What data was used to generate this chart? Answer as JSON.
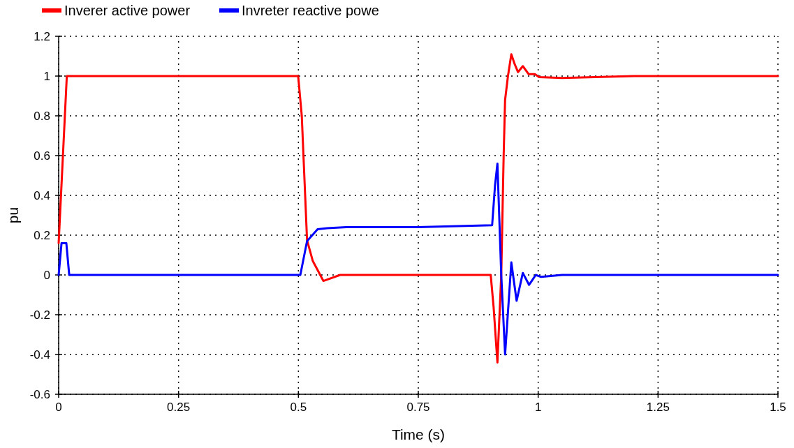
{
  "chart_data": {
    "type": "line",
    "xlabel": "Time (s)",
    "ylabel": "pu",
    "xlim": [
      0,
      1.5
    ],
    "ylim": [
      -0.6,
      1.2
    ],
    "xticks": [
      0,
      0.25,
      0.5,
      0.75,
      1,
      1.25,
      1.5
    ],
    "yticks": [
      -0.6,
      -0.4,
      -0.2,
      0,
      0.2,
      0.4,
      0.6,
      0.8,
      1,
      1.2
    ],
    "grid": true,
    "legend": "top left",
    "line_style": "solid",
    "marker": "none",
    "series": [
      {
        "name": "Inverer active power",
        "color": "#ff0000",
        "x": [
          0,
          0.017,
          0.25,
          0.4995,
          0.507,
          0.518,
          0.53,
          0.552,
          0.587,
          0.7,
          0.901,
          0.907,
          0.915,
          0.923,
          0.928,
          0.931,
          0.937,
          0.944,
          0.951,
          0.958,
          0.968,
          0.98,
          0.993,
          1.002,
          1.05,
          1.2,
          1.5
        ],
        "values": [
          0.16,
          1,
          1,
          1,
          0.8,
          0.175,
          0.07,
          -0.03,
          0,
          0,
          0,
          -0.16,
          -0.44,
          0,
          0.6,
          0.88,
          1,
          1.11,
          1.06,
          1.02,
          1.05,
          1.01,
          1.01,
          0.995,
          0.99,
          1,
          1
        ]
      },
      {
        "name": "Invreter reactive powe",
        "color": "#0000ff",
        "x": [
          0,
          0.006,
          0.016,
          0.022,
          0.25,
          0.504,
          0.518,
          0.54,
          0.56,
          0.6,
          0.75,
          0.904,
          0.91,
          0.915,
          0.923,
          0.931,
          0.944,
          0.955,
          0.968,
          0.981,
          0.995,
          1.006,
          1.05,
          1.5
        ],
        "values": [
          0,
          0.16,
          0.16,
          0,
          0,
          0,
          0.17,
          0.23,
          0.235,
          0.24,
          0.24,
          0.25,
          0.45,
          0.56,
          0,
          -0.4,
          0.063,
          -0.13,
          0.01,
          -0.05,
          0,
          -0.01,
          0,
          0
        ]
      }
    ]
  }
}
